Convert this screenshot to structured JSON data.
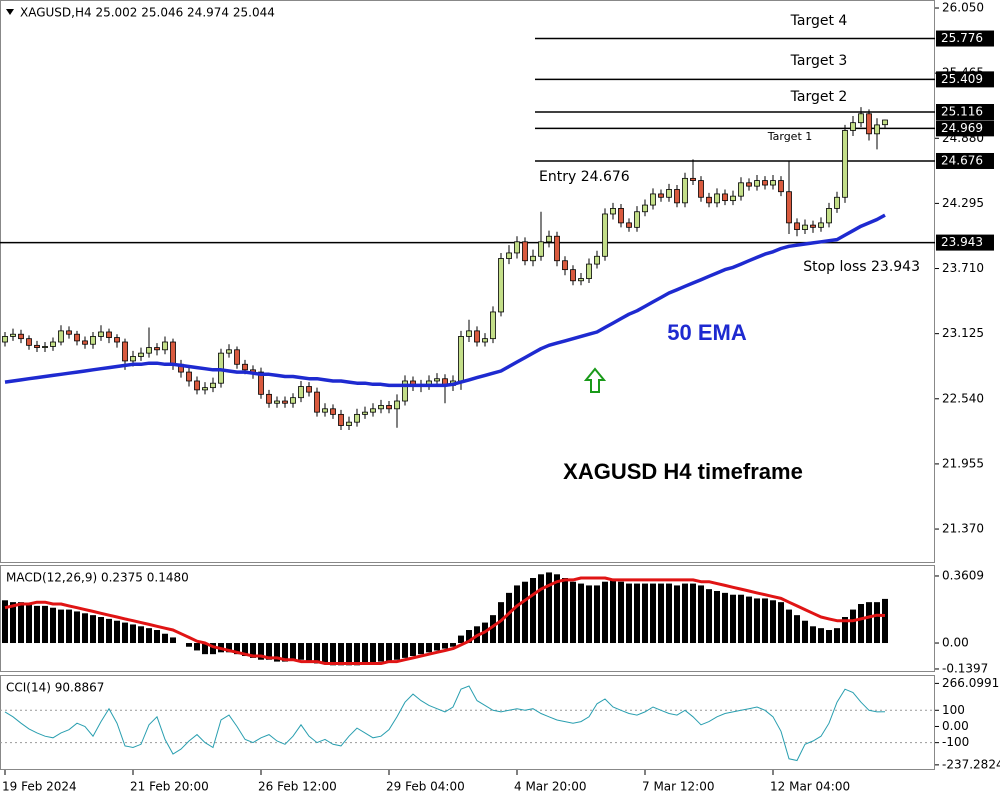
{
  "chart_data": [
    {
      "type": "candlestick",
      "title": "XAGUSD,H4  25.002 25.046 24.974 25.044",
      "categories": [
        "19 Feb 2024",
        null,
        null,
        null,
        null,
        null,
        null,
        null,
        null,
        null,
        null,
        null,
        null,
        null,
        null,
        null,
        "21 Feb 20:00",
        null,
        null,
        null,
        null,
        null,
        null,
        null,
        null,
        null,
        null,
        null,
        null,
        null,
        null,
        null,
        "26 Feb 12:00",
        null,
        null,
        null,
        null,
        null,
        null,
        null,
        null,
        null,
        null,
        null,
        null,
        null,
        null,
        null,
        "29 Feb 04:00",
        null,
        null,
        null,
        null,
        null,
        null,
        null,
        null,
        null,
        null,
        null,
        null,
        null,
        null,
        null,
        "4 Mar 20:00",
        null,
        null,
        null,
        null,
        null,
        null,
        null,
        null,
        null,
        null,
        null,
        null,
        null,
        null,
        null,
        "7 Mar 12:00",
        null,
        null,
        null,
        null,
        null,
        null,
        null,
        null,
        null,
        null,
        null,
        null,
        null,
        null,
        null,
        "12 Mar 04:00",
        null,
        null,
        null,
        null,
        null,
        null,
        null,
        null,
        null,
        null,
        null,
        null,
        null,
        null
      ],
      "open": [
        23.05,
        23.1,
        23.12,
        23.08,
        23.02,
        23.0,
        23.01,
        23.05,
        23.15,
        23.12,
        23.06,
        23.03,
        23.1,
        23.14,
        23.09,
        23.05,
        22.88,
        22.92,
        22.95,
        23.0,
        22.98,
        23.05,
        22.85,
        22.78,
        22.7,
        22.62,
        22.64,
        22.68,
        22.95,
        22.98,
        22.85,
        22.8,
        22.78,
        22.58,
        22.5,
        22.52,
        22.5,
        22.55,
        22.65,
        22.6,
        22.42,
        22.45,
        22.4,
        22.3,
        22.33,
        22.4,
        22.42,
        22.45,
        22.48,
        22.45,
        22.52,
        22.7,
        22.65,
        22.66,
        22.7,
        22.72,
        22.66,
        22.7,
        23.1,
        23.15,
        23.05,
        23.08,
        23.32,
        23.8,
        23.85,
        23.95,
        23.78,
        23.82,
        23.95,
        24.0,
        23.78,
        23.7,
        23.6,
        23.62,
        23.75,
        23.82,
        24.2,
        24.25,
        24.12,
        24.08,
        24.22,
        24.28,
        24.38,
        24.35,
        24.42,
        24.3,
        24.52,
        24.5,
        24.35,
        24.3,
        24.38,
        24.32,
        24.36,
        24.48,
        24.45,
        24.5,
        24.46,
        24.5,
        24.4,
        24.12,
        24.06,
        24.1,
        24.08,
        24.12,
        24.25,
        24.35,
        24.95,
        25.02,
        25.1,
        24.92,
        25.002
      ],
      "high": [
        23.14,
        23.17,
        23.16,
        23.11,
        23.06,
        23.05,
        23.09,
        23.2,
        23.19,
        23.15,
        23.1,
        23.14,
        23.2,
        23.17,
        23.12,
        23.08,
        22.97,
        23.0,
        23.18,
        23.04,
        23.1,
        23.08,
        22.89,
        22.82,
        22.74,
        22.69,
        22.73,
        22.99,
        23.03,
        23.01,
        22.89,
        22.84,
        22.82,
        22.62,
        22.56,
        22.56,
        22.59,
        22.7,
        22.69,
        22.64,
        22.5,
        22.49,
        22.44,
        22.38,
        22.45,
        22.47,
        22.5,
        22.53,
        22.52,
        22.58,
        22.75,
        22.74,
        22.71,
        22.75,
        22.77,
        22.76,
        22.75,
        23.15,
        23.25,
        23.19,
        23.13,
        23.37,
        23.85,
        23.92,
        24.0,
        23.99,
        23.88,
        24.22,
        24.05,
        24.04,
        23.82,
        23.74,
        23.67,
        23.8,
        23.87,
        24.25,
        24.3,
        24.29,
        24.16,
        24.27,
        24.33,
        24.43,
        24.42,
        24.47,
        24.46,
        24.57,
        24.69,
        24.54,
        24.39,
        24.43,
        24.42,
        24.41,
        24.53,
        24.52,
        24.55,
        24.54,
        24.55,
        24.54,
        24.68,
        24.16,
        24.15,
        24.14,
        24.17,
        24.3,
        24.4,
        25.0,
        25.08,
        25.16,
        25.14,
        25.06,
        25.046
      ],
      "low": [
        23.01,
        23.06,
        23.04,
        22.98,
        22.96,
        22.96,
        22.97,
        23.02,
        23.08,
        23.02,
        22.99,
        22.99,
        23.06,
        23.04,
        23.0,
        22.8,
        22.83,
        22.88,
        22.91,
        22.93,
        22.94,
        22.8,
        22.73,
        22.65,
        22.58,
        22.58,
        22.6,
        22.64,
        22.91,
        22.81,
        22.76,
        22.72,
        22.54,
        22.46,
        22.46,
        22.46,
        22.46,
        22.51,
        22.56,
        22.38,
        22.38,
        22.36,
        22.26,
        22.26,
        22.29,
        22.36,
        22.38,
        22.41,
        22.41,
        22.28,
        22.48,
        22.61,
        22.6,
        22.62,
        22.66,
        22.5,
        22.61,
        22.62,
        23.05,
        23.01,
        23.01,
        23.04,
        23.28,
        23.75,
        23.8,
        23.74,
        23.73,
        23.78,
        23.9,
        23.73,
        23.65,
        23.56,
        23.56,
        23.58,
        23.71,
        23.78,
        24.15,
        24.08,
        24.04,
        24.04,
        24.18,
        24.24,
        24.31,
        24.31,
        24.26,
        24.26,
        24.46,
        24.31,
        24.26,
        24.26,
        24.28,
        24.28,
        24.32,
        24.41,
        24.41,
        24.42,
        24.42,
        24.36,
        24.02,
        24.0,
        24.02,
        24.03,
        24.04,
        24.08,
        24.21,
        24.3,
        24.9,
        24.98,
        24.86,
        24.78,
        24.974
      ],
      "close": [
        23.1,
        23.12,
        23.08,
        23.02,
        23.0,
        23.01,
        23.05,
        23.15,
        23.12,
        23.06,
        23.03,
        23.1,
        23.14,
        23.09,
        23.05,
        22.88,
        22.92,
        22.95,
        23.0,
        22.98,
        23.05,
        22.85,
        22.78,
        22.7,
        22.62,
        22.64,
        22.68,
        22.95,
        22.98,
        22.85,
        22.8,
        22.78,
        22.58,
        22.5,
        22.52,
        22.5,
        22.55,
        22.65,
        22.6,
        22.42,
        22.45,
        22.4,
        22.3,
        22.33,
        22.4,
        22.42,
        22.45,
        22.48,
        22.45,
        22.52,
        22.7,
        22.65,
        22.66,
        22.7,
        22.72,
        22.66,
        22.7,
        23.1,
        23.15,
        23.05,
        23.08,
        23.32,
        23.8,
        23.85,
        23.95,
        23.78,
        23.82,
        23.95,
        24.0,
        23.78,
        23.7,
        23.6,
        23.62,
        23.75,
        23.82,
        24.2,
        24.25,
        24.12,
        24.08,
        24.22,
        24.28,
        24.38,
        24.35,
        24.42,
        24.3,
        24.52,
        24.5,
        24.35,
        24.3,
        24.38,
        24.32,
        24.36,
        24.48,
        24.45,
        24.5,
        24.46,
        24.5,
        24.4,
        24.12,
        24.06,
        24.1,
        24.08,
        24.12,
        24.25,
        24.35,
        24.95,
        25.02,
        25.1,
        24.92,
        25.0,
        25.044
      ],
      "up_color": "#c3de88",
      "down_color": "#d95a3e",
      "series": [
        {
          "name": "50 EMA",
          "color": "#1e2ad0",
          "values": [
            22.69,
            22.7,
            22.71,
            22.72,
            22.73,
            22.74,
            22.75,
            22.76,
            22.77,
            22.78,
            22.79,
            22.8,
            22.81,
            22.82,
            22.83,
            22.84,
            22.85,
            22.85,
            22.86,
            22.86,
            22.85,
            22.85,
            22.84,
            22.83,
            22.82,
            22.81,
            22.8,
            22.8,
            22.79,
            22.78,
            22.78,
            22.77,
            22.76,
            22.76,
            22.75,
            22.74,
            22.74,
            22.73,
            22.72,
            22.72,
            22.71,
            22.7,
            22.7,
            22.69,
            22.68,
            22.68,
            22.67,
            22.67,
            22.66,
            22.66,
            22.66,
            22.66,
            22.66,
            22.66,
            22.66,
            22.66,
            22.67,
            22.69,
            22.71,
            22.73,
            22.75,
            22.77,
            22.79,
            22.83,
            22.87,
            22.91,
            22.95,
            22.99,
            23.02,
            23.04,
            23.06,
            23.08,
            23.1,
            23.12,
            23.14,
            23.18,
            23.22,
            23.26,
            23.3,
            23.33,
            23.37,
            23.41,
            23.45,
            23.49,
            23.52,
            23.55,
            23.58,
            23.61,
            23.64,
            23.67,
            23.7,
            23.72,
            23.75,
            23.78,
            23.81,
            23.84,
            23.86,
            23.89,
            23.91,
            23.92,
            23.93,
            23.94,
            23.95,
            23.96,
            23.97,
            24.01,
            24.05,
            24.09,
            24.12,
            24.15,
            24.19
          ]
        }
      ],
      "levels": [
        25.776,
        25.409,
        25.116,
        24.969,
        24.676,
        23.943
      ],
      "annotations": [
        "Target 4",
        "Target 3",
        "Target 2",
        "Target 1",
        "Entry  24.676",
        "Stop loss  23.943",
        "XAGUSD H4 timeframe"
      ],
      "ylim": [
        21.065,
        26.122
      ],
      "yticks": [
        {
          "value": 26.05,
          "label": "26.050"
        },
        {
          "value": 25.465,
          "label": "25.465"
        },
        {
          "value": 24.88,
          "label": "24.880"
        },
        {
          "value": 24.295,
          "label": "24.295"
        },
        {
          "value": 23.71,
          "label": "23.710"
        },
        {
          "value": 23.125,
          "label": "23.125"
        },
        {
          "value": 22.54,
          "label": "22.540"
        },
        {
          "value": 21.955,
          "label": "21.955"
        },
        {
          "value": 21.37,
          "label": "21.370"
        }
      ]
    },
    {
      "type": "macd",
      "title": "MACD(12,26,9) 0.2375 0.1480",
      "series": [
        {
          "name": "MACD",
          "color": "#000000",
          "values": [
            0.23,
            0.22,
            0.22,
            0.21,
            0.2,
            0.2,
            0.19,
            0.18,
            0.18,
            0.17,
            0.16,
            0.15,
            0.14,
            0.13,
            0.12,
            0.11,
            0.1,
            0.09,
            0.08,
            0.07,
            0.05,
            0.03,
            0.0,
            -0.02,
            -0.04,
            -0.06,
            -0.06,
            -0.05,
            -0.05,
            -0.06,
            -0.07,
            -0.08,
            -0.09,
            -0.09,
            -0.1,
            -0.1,
            -0.09,
            -0.09,
            -0.1,
            -0.11,
            -0.11,
            -0.12,
            -0.12,
            -0.12,
            -0.12,
            -0.11,
            -0.11,
            -0.1,
            -0.1,
            -0.09,
            -0.08,
            -0.07,
            -0.06,
            -0.05,
            -0.04,
            -0.03,
            -0.02,
            0.04,
            0.07,
            0.09,
            0.11,
            0.15,
            0.22,
            0.27,
            0.31,
            0.33,
            0.35,
            0.37,
            0.38,
            0.37,
            0.35,
            0.33,
            0.32,
            0.31,
            0.31,
            0.33,
            0.34,
            0.33,
            0.32,
            0.32,
            0.32,
            0.32,
            0.32,
            0.32,
            0.31,
            0.32,
            0.32,
            0.31,
            0.29,
            0.28,
            0.27,
            0.26,
            0.26,
            0.25,
            0.24,
            0.24,
            0.23,
            0.22,
            0.18,
            0.15,
            0.12,
            0.09,
            0.08,
            0.07,
            0.08,
            0.14,
            0.18,
            0.21,
            0.22,
            0.22,
            0.2375
          ]
        },
        {
          "name": "Signal",
          "color": "#e01414",
          "values": [
            0.19,
            0.2,
            0.21,
            0.21,
            0.22,
            0.22,
            0.21,
            0.21,
            0.2,
            0.19,
            0.18,
            0.17,
            0.16,
            0.15,
            0.14,
            0.13,
            0.12,
            0.11,
            0.1,
            0.09,
            0.08,
            0.07,
            0.05,
            0.03,
            0.01,
            0.0,
            -0.02,
            -0.03,
            -0.04,
            -0.05,
            -0.06,
            -0.07,
            -0.07,
            -0.08,
            -0.08,
            -0.09,
            -0.09,
            -0.1,
            -0.1,
            -0.1,
            -0.11,
            -0.11,
            -0.11,
            -0.11,
            -0.11,
            -0.11,
            -0.11,
            -0.11,
            -0.1,
            -0.1,
            -0.09,
            -0.08,
            -0.07,
            -0.06,
            -0.05,
            -0.04,
            -0.03,
            -0.01,
            0.01,
            0.04,
            0.06,
            0.09,
            0.12,
            0.16,
            0.2,
            0.23,
            0.26,
            0.29,
            0.31,
            0.33,
            0.34,
            0.34,
            0.35,
            0.35,
            0.35,
            0.35,
            0.34,
            0.34,
            0.34,
            0.34,
            0.34,
            0.34,
            0.34,
            0.34,
            0.34,
            0.34,
            0.34,
            0.33,
            0.33,
            0.32,
            0.31,
            0.3,
            0.29,
            0.28,
            0.27,
            0.26,
            0.25,
            0.24,
            0.22,
            0.2,
            0.18,
            0.16,
            0.14,
            0.13,
            0.12,
            0.12,
            0.12,
            0.13,
            0.14,
            0.15,
            0.148
          ]
        }
      ],
      "ylim": [
        -0.156,
        0.42
      ],
      "yticks": [
        0.3609,
        {
          "value": 0,
          "label": "0.00"
        },
        -0.1397
      ]
    },
    {
      "type": "line",
      "title": "CCI(14) 90.8867",
      "color": "#2a9fb0",
      "values": [
        90,
        60,
        20,
        -15,
        -40,
        -60,
        -70,
        -40,
        -20,
        20,
        0,
        -60,
        30,
        110,
        20,
        -120,
        -130,
        -110,
        10,
        60,
        -80,
        -170,
        -140,
        -90,
        -50,
        -100,
        -130,
        40,
        70,
        0,
        -80,
        -100,
        -70,
        -50,
        -90,
        -110,
        -60,
        10,
        -60,
        -100,
        -80,
        -110,
        -120,
        -60,
        -10,
        -40,
        -70,
        -60,
        -20,
        60,
        150,
        200,
        160,
        130,
        110,
        90,
        120,
        230,
        250,
        160,
        130,
        100,
        90,
        100,
        110,
        100,
        110,
        80,
        60,
        40,
        30,
        20,
        30,
        60,
        140,
        170,
        120,
        100,
        80,
        70,
        90,
        120,
        100,
        80,
        70,
        100,
        60,
        10,
        30,
        60,
        80,
        90,
        100,
        110,
        120,
        100,
        60,
        -30,
        -200,
        -210,
        -110,
        -90,
        -60,
        20,
        150,
        230,
        210,
        150,
        100,
        90,
        90.8867
      ],
      "levels": [
        100,
        -100
      ],
      "ylim": [
        -269,
        318
      ],
      "yticks": [
        266.0991,
        100,
        {
          "value": 0,
          "label": "0.00"
        },
        -100,
        -237.2824
      ]
    }
  ]
}
